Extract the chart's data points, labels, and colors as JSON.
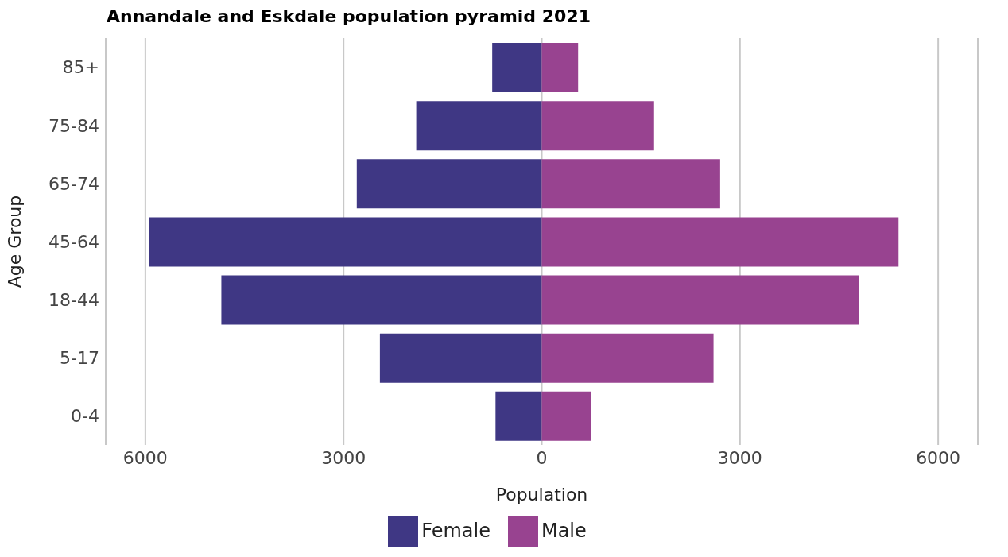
{
  "chart_data": {
    "type": "bar",
    "orientation": "horizontal",
    "stacked": true,
    "title": "Annandale and Eskdale population pyramid 2021",
    "xlabel": "Population",
    "ylabel": "Age Group",
    "categories": [
      "85+",
      "75-84",
      "65-74",
      "45-64",
      "18-44",
      "5-17",
      "0-4"
    ],
    "series": [
      {
        "name": "Female",
        "color": "#3f3784",
        "values": [
          -750,
          -1900,
          -2800,
          -5950,
          -4850,
          -2450,
          -700
        ]
      },
      {
        "name": "Male",
        "color": "#984390",
        "values": [
          550,
          1700,
          2700,
          5400,
          4800,
          2600,
          750
        ]
      }
    ],
    "xlim": [
      -6600,
      6600
    ],
    "xticks": [
      {
        "value": -6000,
        "label": "6000"
      },
      {
        "value": -3000,
        "label": "3000"
      },
      0,
      3000,
      6000
    ],
    "grid": "x",
    "legend": "bottom"
  }
}
